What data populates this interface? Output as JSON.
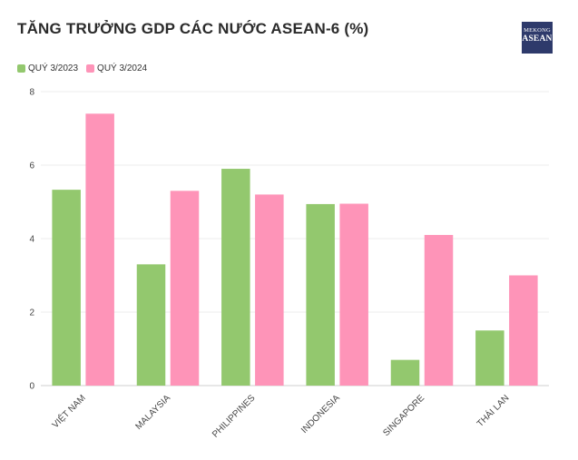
{
  "title": "TĂNG TRƯỞNG GDP CÁC NƯỚC ASEAN-6 (%)",
  "logo": {
    "line1": "MEKONG",
    "line2": "ASEAN"
  },
  "chart_data": {
    "type": "bar",
    "title": "TĂNG TRƯỞNG GDP CÁC NƯỚC ASEAN-6 (%)",
    "xlabel": "",
    "ylabel": "",
    "ylim": [
      0,
      8
    ],
    "yticks": [
      0,
      2,
      4,
      6,
      8
    ],
    "grid": true,
    "legend_position": "top-left",
    "categories": [
      "VIỆT NAM",
      "MALAYSIA",
      "PHILIPPINES",
      "INDONESIA",
      "SINGAPORE",
      "THÁI LAN"
    ],
    "series": [
      {
        "name": "QUÝ 3/2023",
        "color": "#93c86e",
        "values": [
          5.33,
          3.3,
          5.9,
          4.94,
          0.7,
          1.5
        ]
      },
      {
        "name": "QUÝ 3/2024",
        "color": "#fe94b8",
        "values": [
          7.4,
          5.3,
          5.2,
          4.95,
          4.1,
          3.0
        ]
      }
    ]
  }
}
